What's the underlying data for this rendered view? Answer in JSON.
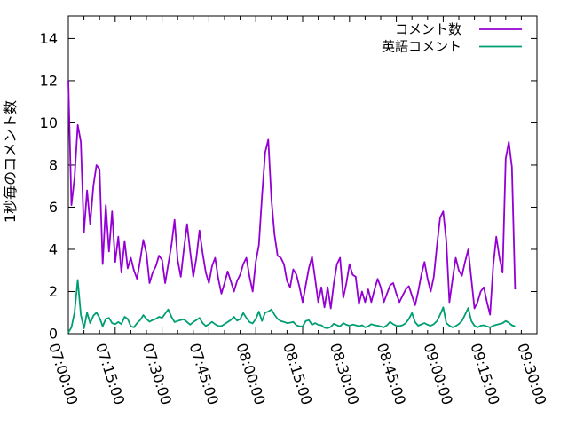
{
  "chart_data": {
    "type": "line",
    "title": "",
    "xlabel": "",
    "ylabel": "1秒毎のコメント数",
    "grid": false,
    "legend_position": "top-right-inside",
    "x_range_seconds": [
      0,
      9000
    ],
    "x_major_tick_seconds": 900,
    "x_minor_tick_seconds": 300,
    "x_tick_labels": [
      "07:00:00",
      "07:15:00",
      "07:30:00",
      "07:45:00",
      "08:00:00",
      "08:15:00",
      "08:30:00",
      "08:45:00",
      "09:00:00",
      "09:15:00",
      "09:30:00"
    ],
    "ylim": [
      0,
      15.07
    ],
    "yticks": [
      0,
      2,
      4,
      6,
      8,
      10,
      12,
      14
    ],
    "sample_interval_seconds": 60,
    "axis_color": "#000000",
    "series": [
      {
        "name": "コメント数",
        "color": "#9400d3",
        "values": [
          12,
          6.1,
          7.4,
          9.9,
          9.1,
          4.8,
          6.8,
          5.2,
          7,
          8,
          7.8,
          3.3,
          6.1,
          3.9,
          5.8,
          3.4,
          4.6,
          2.9,
          4.4,
          3.1,
          3.6,
          3,
          2.6,
          3.5,
          4.45,
          3.8,
          2.4,
          2.9,
          3.2,
          3.7,
          3.5,
          2.4,
          3.3,
          4.2,
          5.4,
          3.5,
          2.7,
          4,
          5.2,
          3.9,
          2.7,
          3.6,
          4.9,
          3.8,
          2.9,
          2.4,
          3.2,
          3.6,
          2.6,
          1.9,
          2.4,
          2.95,
          2.5,
          2,
          2.5,
          2.8,
          3.3,
          3.6,
          2.7,
          2,
          3.4,
          4.2,
          6.5,
          8.6,
          9.2,
          6.4,
          4.7,
          3.7,
          3.6,
          3.3,
          2.5,
          2.2,
          3.05,
          2.8,
          2.2,
          1.5,
          2.3,
          3.1,
          3.65,
          2.6,
          1.5,
          2.2,
          1.25,
          2.2,
          1.2,
          2.4,
          3.3,
          3.6,
          1.7,
          2.4,
          3.3,
          2.8,
          2.7,
          1.4,
          2,
          1.5,
          2.1,
          1.5,
          2.1,
          2.6,
          2.2,
          1.5,
          1.9,
          2.3,
          2.4,
          1.9,
          1.5,
          1.8,
          2.1,
          2.25,
          1.8,
          1.35,
          2,
          2.8,
          3.4,
          2.6,
          2,
          2.7,
          4.2,
          5.5,
          5.8,
          4.4,
          1.5,
          2.6,
          3.6,
          3,
          2.75,
          3.4,
          4,
          2.6,
          1.2,
          1.5,
          2,
          2.2,
          1.5,
          0.9,
          3.2,
          4.6,
          3.6,
          2.9,
          8.3,
          9.1,
          7.9,
          2.1
        ]
      },
      {
        "name": "英語コメント",
        "color": "#009e73",
        "values": [
          0.05,
          0.3,
          1,
          2.55,
          0.9,
          0.25,
          1,
          0.5,
          0.85,
          1,
          0.75,
          0.35,
          0.7,
          0.75,
          0.5,
          0.45,
          0.55,
          0.45,
          0.8,
          0.7,
          0.35,
          0.3,
          0.5,
          0.65,
          0.88,
          0.7,
          0.57,
          0.65,
          0.7,
          0.8,
          0.75,
          0.95,
          1.15,
          0.8,
          0.55,
          0.6,
          0.65,
          0.68,
          0.55,
          0.43,
          0.55,
          0.65,
          0.75,
          0.5,
          0.36,
          0.45,
          0.56,
          0.45,
          0.36,
          0.36,
          0.45,
          0.55,
          0.65,
          0.8,
          0.62,
          0.7,
          0.98,
          0.75,
          0.55,
          0.49,
          0.7,
          1.05,
          0.6,
          1,
          1.05,
          1.15,
          0.9,
          0.7,
          0.6,
          0.56,
          0.5,
          0.52,
          0.56,
          0.4,
          0.35,
          0.34,
          0.6,
          0.64,
          0.42,
          0.5,
          0.42,
          0.4,
          0.28,
          0.26,
          0.32,
          0.47,
          0.4,
          0.35,
          0.5,
          0.42,
          0.38,
          0.43,
          0.4,
          0.35,
          0.4,
          0.3,
          0.35,
          0.45,
          0.4,
          0.38,
          0.34,
          0.3,
          0.4,
          0.56,
          0.45,
          0.38,
          0.36,
          0.4,
          0.5,
          0.7,
          0.98,
          0.55,
          0.38,
          0.44,
          0.5,
          0.42,
          0.38,
          0.45,
          0.6,
          0.9,
          1.25,
          0.5,
          0.38,
          0.3,
          0.36,
          0.46,
          0.6,
          0.9,
          1.22,
          0.6,
          0.38,
          0.3,
          0.38,
          0.4,
          0.34,
          0.3,
          0.38,
          0.42,
          0.46,
          0.5,
          0.6,
          0.52,
          0.4,
          0.34
        ]
      }
    ]
  }
}
